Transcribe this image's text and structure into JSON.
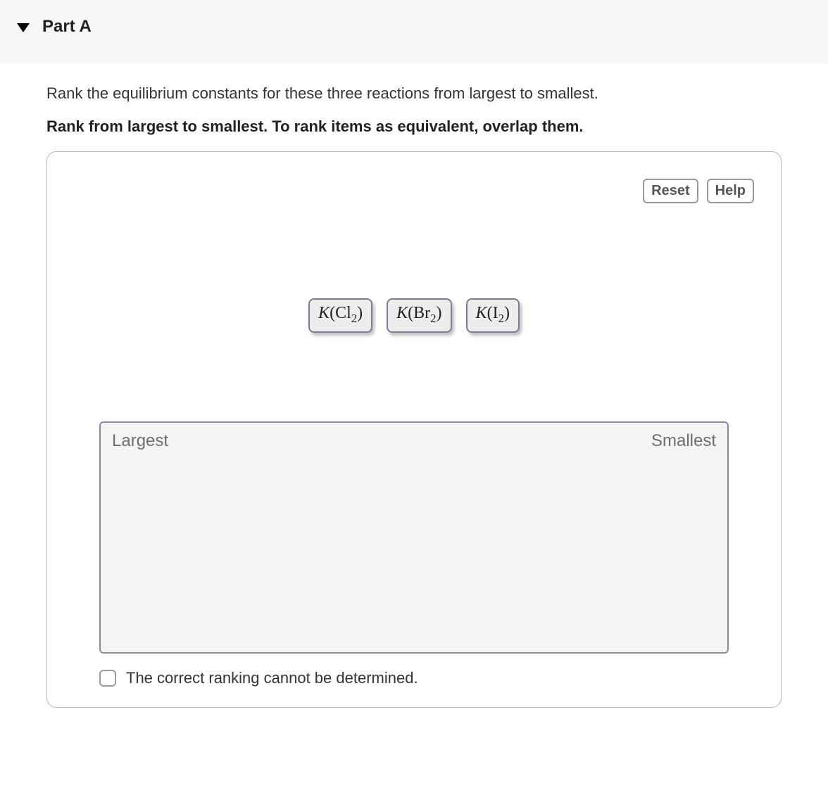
{
  "header": {
    "part_label": "Part A"
  },
  "question": {
    "prompt": "Rank the equilibrium constants for these three reactions from largest to smallest.",
    "instructions": "Rank from largest to smallest.  To rank items as equivalent, overlap them."
  },
  "controls": {
    "reset_label": "Reset",
    "help_label": "Help"
  },
  "chips": [
    {
      "k": "K",
      "open": "(",
      "elem": "Cl",
      "sub": "2",
      "close": ")"
    },
    {
      "k": "K",
      "open": "(",
      "elem": "Br",
      "sub": "2",
      "close": ")"
    },
    {
      "k": "K",
      "open": "(",
      "elem": "I",
      "sub": "2",
      "close": ")"
    }
  ],
  "dropzone": {
    "left_label": "Largest",
    "right_label": "Smallest"
  },
  "checkbox": {
    "label": "The correct ranking cannot be determined."
  },
  "style": {
    "page_bg": "#ffffff",
    "header_bg": "#f7f7f7",
    "border_color": "#b9b9c2",
    "chip_bg": "#ededed",
    "chip_border": "#7d7d8b",
    "dropzone_bg": "#f4f4f4",
    "dropzone_border": "#8b8ba0",
    "button_border": "#999999",
    "text_primary": "#333333",
    "text_muted": "#6e6e6e"
  }
}
